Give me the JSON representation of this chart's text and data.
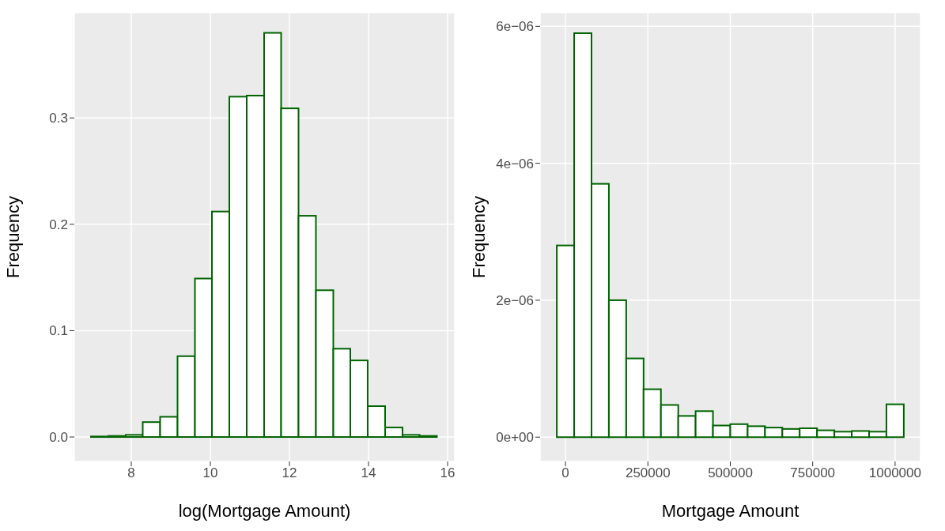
{
  "chart_data": [
    {
      "type": "histogram",
      "xlabel": "log(Mortgage Amount)",
      "ylabel": "Frequency",
      "color": "#006400",
      "grid": true,
      "bins": [
        6.98,
        7.42,
        7.86,
        8.29,
        8.73,
        9.17,
        9.61,
        10.04,
        10.48,
        10.92,
        11.36,
        11.79,
        12.23,
        12.67,
        13.11,
        13.54,
        13.98,
        14.42,
        14.86,
        15.29,
        15.73
      ],
      "values": [
        0.0005,
        0.001,
        0.002,
        0.014,
        0.019,
        0.076,
        0.149,
        0.212,
        0.32,
        0.321,
        0.38,
        0.309,
        0.208,
        0.138,
        0.083,
        0.072,
        0.029,
        0.009,
        0.002,
        0.001
      ],
      "xlim": [
        6.56,
        16.18
      ],
      "xticks": [
        8,
        10,
        12,
        14,
        16
      ],
      "ylim": [
        -0.023,
        0.399
      ],
      "yticks": [
        {
          "value": 0,
          "label": "0.0"
        },
        {
          "value": 0.1,
          "label": "0.1"
        },
        {
          "value": 0.2,
          "label": "0.2"
        },
        {
          "value": 0.3,
          "label": "0.3"
        }
      ]
    },
    {
      "type": "histogram",
      "xlabel": "Mortgage Amount",
      "ylabel": "Frequency",
      "color": "#006400",
      "grid": true,
      "bins": [
        -26316,
        26316,
        78947,
        131579,
        184211,
        236842,
        289474,
        342105,
        394737,
        447368,
        500000,
        552632,
        605263,
        657895,
        710526,
        763158,
        815789,
        868421,
        921053,
        973684,
        1026316
      ],
      "values": [
        2.8e-06,
        5.9e-06,
        3.7e-06,
        2e-06,
        1.15e-06,
        7e-07,
        4.7e-07,
        3.1e-07,
        3.8e-07,
        1.7e-07,
        1.9e-07,
        1.6e-07,
        1.4e-07,
        1.2e-07,
        1.3e-07,
        1e-07,
        8e-08,
        9e-08,
        8e-08,
        4.8e-07
      ],
      "xlim": [
        -77000,
        1077000
      ],
      "xticks": [
        0,
        250000,
        500000,
        750000,
        1000000
      ],
      "ylim": [
        -3.55e-07,
        6.2e-06
      ],
      "yticks": [
        {
          "value": 0,
          "label": "0e+00"
        },
        {
          "value": 2e-06,
          "label": "2e−06"
        },
        {
          "value": 4e-06,
          "label": "4e−06"
        },
        {
          "value": 6e-06,
          "label": "6e−06"
        }
      ]
    }
  ]
}
